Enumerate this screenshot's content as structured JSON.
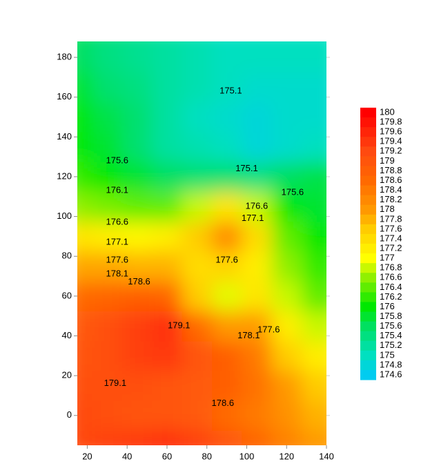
{
  "chart_data": {
    "type": "contour",
    "xlim": [
      15,
      140
    ],
    "ylim": [
      -15,
      188
    ],
    "xticks": [
      20,
      40,
      60,
      80,
      100,
      120,
      140
    ],
    "yticks": [
      0,
      20,
      40,
      60,
      80,
      100,
      120,
      140,
      160,
      180
    ],
    "x": [
      15,
      30,
      45,
      60,
      75,
      90,
      105,
      120,
      135
    ],
    "y": [
      -15,
      0,
      15,
      30,
      45,
      60,
      75,
      90,
      105,
      120,
      135,
      150,
      165,
      180
    ],
    "z": [
      [
        179.2,
        179.3,
        179.4,
        179.5,
        179.3,
        179.0,
        178.7,
        178.3,
        178.0
      ],
      [
        179.2,
        179.1,
        179.0,
        179.0,
        178.9,
        178.6,
        178.4,
        178.1,
        177.8
      ],
      [
        179.1,
        179.1,
        179.1,
        179.0,
        178.9,
        178.8,
        178.5,
        178.0,
        177.6
      ],
      [
        179.0,
        179.1,
        179.3,
        179.4,
        179.0,
        178.8,
        178.4,
        177.6,
        177.2
      ],
      [
        178.9,
        179.1,
        179.3,
        179.5,
        178.6,
        178.0,
        178.0,
        177.2,
        176.8
      ],
      [
        178.6,
        178.7,
        178.8,
        178.7,
        177.6,
        176.9,
        177.3,
        176.8,
        176.4
      ],
      [
        177.9,
        177.9,
        177.8,
        177.8,
        177.4,
        177.5,
        177.2,
        176.6,
        176.2
      ],
      [
        177.3,
        177.2,
        177.1,
        177.2,
        177.6,
        178.2,
        177.4,
        176.4,
        176.0
      ],
      [
        176.6,
        176.5,
        176.4,
        176.4,
        176.8,
        177.3,
        176.8,
        176.0,
        175.8
      ],
      [
        176.2,
        176.0,
        175.8,
        175.6,
        175.5,
        175.5,
        175.4,
        175.6,
        175.7
      ],
      [
        176.0,
        175.8,
        175.5,
        175.2,
        175.1,
        175.0,
        174.8,
        174.9,
        175.0
      ],
      [
        176.0,
        175.7,
        175.5,
        175.2,
        175.0,
        174.9,
        174.8,
        174.9,
        174.9
      ],
      [
        175.8,
        175.5,
        175.4,
        175.2,
        175.1,
        175.0,
        174.9,
        174.9,
        174.9
      ],
      [
        175.6,
        175.4,
        175.3,
        175.2,
        175.1,
        175.0,
        175.0,
        175.0,
        175.0
      ]
    ],
    "colorscale": [
      [
        174.6,
        "#00ccf0"
      ],
      [
        175.0,
        "#00e0c0"
      ],
      [
        175.6,
        "#00e060"
      ],
      [
        176.0,
        "#00e800"
      ],
      [
        176.6,
        "#90f000"
      ],
      [
        177.0,
        "#ffff00"
      ],
      [
        177.6,
        "#ffcc00"
      ],
      [
        178.0,
        "#ff9900"
      ],
      [
        178.6,
        "#ff6a00"
      ],
      [
        179.2,
        "#ff4a10"
      ],
      [
        180.0,
        "#ff0000"
      ]
    ],
    "colorbar_ticks": [
      180,
      179.8,
      179.6,
      179.4,
      179.2,
      179,
      178.8,
      178.6,
      178.4,
      178.2,
      178,
      177.8,
      177.6,
      177.4,
      177.2,
      177,
      176.8,
      176.6,
      176.4,
      176.2,
      176,
      175.8,
      175.6,
      175.4,
      175.2,
      175,
      174.8,
      174.6
    ],
    "contour_labels": [
      {
        "value": 175.1,
        "x": 92,
        "y": 163
      },
      {
        "value": 175.6,
        "x": 35,
        "y": 128
      },
      {
        "value": 175.1,
        "x": 100,
        "y": 124
      },
      {
        "value": 175.6,
        "x": 123,
        "y": 112
      },
      {
        "value": 176.1,
        "x": 35,
        "y": 113
      },
      {
        "value": 176.6,
        "x": 105,
        "y": 105
      },
      {
        "value": 177.1,
        "x": 103,
        "y": 99
      },
      {
        "value": 176.6,
        "x": 35,
        "y": 97
      },
      {
        "value": 177.1,
        "x": 35,
        "y": 87
      },
      {
        "value": 177.6,
        "x": 35,
        "y": 78
      },
      {
        "value": 177.6,
        "x": 90,
        "y": 78
      },
      {
        "value": 178.1,
        "x": 35,
        "y": 71
      },
      {
        "value": 178.6,
        "x": 46,
        "y": 67
      },
      {
        "value": 179.1,
        "x": 66,
        "y": 45
      },
      {
        "value": 178.1,
        "x": 101,
        "y": 40
      },
      {
        "value": 177.6,
        "x": 111,
        "y": 43
      },
      {
        "value": 179.1,
        "x": 34,
        "y": 16
      },
      {
        "value": 178.6,
        "x": 88,
        "y": 6
      }
    ]
  }
}
